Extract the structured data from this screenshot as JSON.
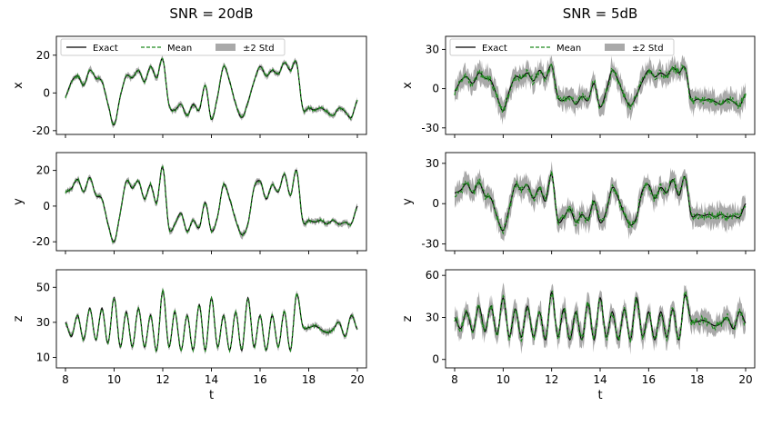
{
  "columns": [
    {
      "title": "SNR = 20dB",
      "noise_level": 0.12,
      "band_halfwidth_frac": 0.05
    },
    {
      "title": "SNR = 5dB",
      "noise_level": 0.35,
      "band_halfwidth_frac": 0.18
    }
  ],
  "legend": {
    "exact": "Exact",
    "mean": "Mean",
    "std": "±2 Std"
  },
  "xlabel": "t",
  "colors": {
    "exact": "#000000",
    "mean": "#1f8a1f",
    "band": "#a9a9a9"
  },
  "chart_data": {
    "type": "line",
    "x_range": [
      8,
      20
    ],
    "x_ticks": [
      8,
      10,
      12,
      14,
      16,
      18,
      20
    ],
    "t": [
      8.0,
      8.25,
      8.5,
      8.75,
      9.0,
      9.25,
      9.5,
      9.75,
      10.0,
      10.25,
      10.5,
      10.75,
      11.0,
      11.25,
      11.5,
      11.75,
      12.0,
      12.25,
      12.5,
      12.75,
      13.0,
      13.25,
      13.5,
      13.75,
      14.0,
      14.25,
      14.5,
      14.75,
      15.0,
      15.25,
      15.5,
      15.75,
      16.0,
      16.25,
      16.5,
      16.75,
      17.0,
      17.25,
      17.5,
      17.75,
      18.0,
      18.25,
      18.5,
      18.75,
      19.0,
      19.25,
      19.5,
      19.75,
      20.0
    ],
    "rows": [
      {
        "ylabel": "x",
        "ylim_20dB": [
          -22,
          30
        ],
        "yticks_20dB": [
          -20,
          0,
          20
        ],
        "ylim_5dB": [
          -35,
          40
        ],
        "yticks_5dB": [
          -30,
          0,
          30
        ],
        "exact": [
          -2,
          6,
          9,
          4,
          12,
          8,
          6,
          -6,
          -17,
          -2,
          9,
          8,
          12,
          6,
          14,
          8,
          18,
          -6,
          -9,
          -6,
          -12,
          -6,
          -9,
          4,
          -14,
          -2,
          14,
          6,
          -6,
          -13,
          -5,
          6,
          14,
          9,
          12,
          10,
          16,
          12,
          16,
          -8,
          -8,
          -9,
          -8,
          -10,
          -12,
          -8,
          -10,
          -13,
          -4
        ]
      },
      {
        "ylabel": "y",
        "ylim_20dB": [
          -25,
          30
        ],
        "yticks_20dB": [
          -20,
          0,
          20
        ],
        "ylim_5dB": [
          -35,
          38
        ],
        "yticks_5dB": [
          -30,
          0,
          30
        ],
        "exact": [
          8,
          10,
          15,
          8,
          16,
          6,
          4,
          -10,
          -20,
          -4,
          14,
          10,
          14,
          4,
          12,
          2,
          22,
          -12,
          -10,
          -4,
          -14,
          -8,
          -12,
          2,
          -14,
          -6,
          12,
          4,
          -8,
          -16,
          -10,
          10,
          14,
          4,
          12,
          8,
          18,
          6,
          20,
          -8,
          -8,
          -9,
          -8,
          -10,
          -8,
          -10,
          -9,
          -10,
          0
        ]
      },
      {
        "ylabel": "z",
        "ylim_20dB": [
          4,
          60
        ],
        "yticks_20dB": [
          10,
          30,
          50
        ],
        "ylim_5dB": [
          -6,
          64
        ],
        "yticks_5dB": [
          0,
          30,
          60
        ],
        "exact": [
          30,
          22,
          34,
          20,
          38,
          20,
          38,
          18,
          44,
          16,
          36,
          16,
          38,
          16,
          34,
          14,
          48,
          16,
          36,
          14,
          34,
          14,
          40,
          14,
          44,
          16,
          34,
          14,
          36,
          14,
          44,
          16,
          34,
          14,
          34,
          16,
          36,
          14,
          46,
          28,
          27,
          28,
          26,
          24,
          26,
          30,
          22,
          34,
          26
        ]
      }
    ]
  }
}
